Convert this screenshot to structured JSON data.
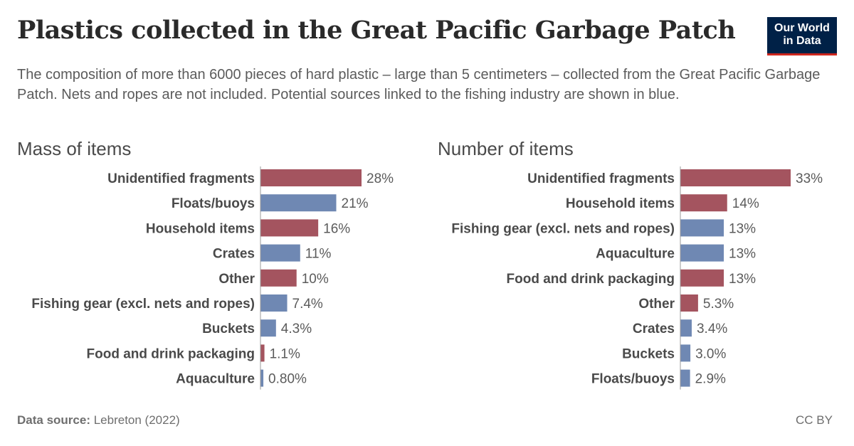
{
  "title": "Plastics collected in the Great Pacific Garbage Patch",
  "logo": {
    "line1": "Our World",
    "line2": "in Data"
  },
  "subtitle": "The composition of more than 6000 pieces of hard plastic – large than 5 centimeters – collected from the Great Pacific Garbage Patch. Nets and ropes are not included. Potential sources linked to the fishing industry are shown in blue.",
  "colors": {
    "non_fishing": "#a4545f",
    "fishing": "#6f88b3",
    "axis": "#999999",
    "label": "#4a4a4a",
    "value": "#5b5b5b"
  },
  "chart_data": [
    {
      "type": "bar",
      "orientation": "horizontal",
      "title": "Mass of items",
      "categories": [
        "Unidentified fragments",
        "Floats/buoys",
        "Household items",
        "Crates",
        "Other",
        "Fishing gear (excl. nets and ropes)",
        "Buckets",
        "Food and drink packaging",
        "Aquaculture"
      ],
      "values": [
        28,
        21,
        16,
        11,
        10,
        7.4,
        4.3,
        1.1,
        0.8
      ],
      "value_labels": [
        "28%",
        "21%",
        "16%",
        "11%",
        "10%",
        "7.4%",
        "4.3%",
        "1.1%",
        "0.80%"
      ],
      "fishing_related": [
        false,
        true,
        false,
        true,
        false,
        true,
        true,
        false,
        true
      ],
      "xlim": [
        0,
        33
      ]
    },
    {
      "type": "bar",
      "orientation": "horizontal",
      "title": "Number of items",
      "categories": [
        "Unidentified fragments",
        "Household items",
        "Fishing gear (excl. nets and ropes)",
        "Aquaculture",
        "Food and drink packaging",
        "Other",
        "Crates",
        "Buckets",
        "Floats/buoys"
      ],
      "values": [
        33,
        14,
        13,
        13,
        13,
        5.3,
        3.4,
        3.0,
        2.9
      ],
      "value_labels": [
        "33%",
        "14%",
        "13%",
        "13%",
        "13%",
        "5.3%",
        "3.4%",
        "3.0%",
        "2.9%"
      ],
      "fishing_related": [
        false,
        false,
        true,
        true,
        false,
        false,
        true,
        true,
        true
      ],
      "xlim": [
        0,
        33
      ]
    }
  ],
  "footer": {
    "source_label": "Data source:",
    "source_value": "Lebreton (2022)",
    "license": "CC BY"
  }
}
